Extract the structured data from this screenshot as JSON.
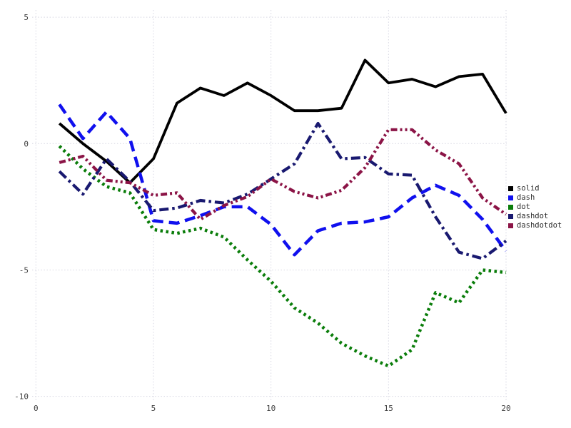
{
  "chart_data": {
    "type": "line",
    "title": "",
    "xlabel": "",
    "ylabel": "",
    "x": [
      1,
      2,
      3,
      4,
      5,
      6,
      7,
      8,
      9,
      10,
      11,
      12,
      13,
      14,
      15,
      16,
      17,
      18,
      19,
      20
    ],
    "series": [
      {
        "name": "solid",
        "style": "solid",
        "color": "#000000",
        "values": [
          0.8,
          0.0,
          -0.7,
          -1.55,
          -0.6,
          1.6,
          2.2,
          1.9,
          2.4,
          1.9,
          1.3,
          1.3,
          1.4,
          3.3,
          2.4,
          2.55,
          2.25,
          2.65,
          2.75,
          1.2
        ]
      },
      {
        "name": "dash",
        "style": "dash",
        "color": "#1010ee",
        "values": [
          1.55,
          0.2,
          1.25,
          0.2,
          -3.05,
          -3.15,
          -2.85,
          -2.5,
          -2.5,
          -3.2,
          -4.4,
          -3.45,
          -3.15,
          -3.1,
          -2.9,
          -2.15,
          -1.65,
          -2.05,
          -3.0,
          -4.25
        ]
      },
      {
        "name": "dot",
        "style": "dot",
        "color": "#0a7d0a",
        "values": [
          -0.1,
          -1.0,
          -1.7,
          -1.95,
          -3.4,
          -3.55,
          -3.35,
          -3.7,
          -4.6,
          -5.45,
          -6.5,
          -7.1,
          -7.9,
          -8.4,
          -8.8,
          -8.15,
          -5.9,
          -6.3,
          -5.0,
          -5.1
        ]
      },
      {
        "name": "dashdot",
        "style": "dashdot",
        "color": "#191970",
        "values": [
          -1.1,
          -2.0,
          -0.6,
          -1.5,
          -2.65,
          -2.55,
          -2.25,
          -2.35,
          -2.0,
          -1.4,
          -0.8,
          0.8,
          -0.6,
          -0.55,
          -1.2,
          -1.25,
          -2.9,
          -4.3,
          -4.55,
          -3.85
        ]
      },
      {
        "name": "dashdotdot",
        "style": "dashdotdot",
        "color": "#8b1446",
        "values": [
          -0.75,
          -0.5,
          -1.45,
          -1.55,
          -2.05,
          -1.95,
          -3.0,
          -2.45,
          -2.1,
          -1.4,
          -1.9,
          -2.15,
          -1.85,
          -0.95,
          0.55,
          0.55,
          -0.25,
          -0.8,
          -2.15,
          -2.8
        ]
      }
    ],
    "axes": {
      "x_ticks": [
        0,
        5,
        10,
        15,
        20
      ],
      "y_ticks": [
        5,
        0,
        -5,
        -10
      ],
      "xlim": [
        0,
        20
      ],
      "ylim": [
        -10,
        5
      ],
      "grid": true,
      "grid_style": "dotted"
    },
    "legend": {
      "position": "right",
      "labels": [
        "solid",
        "dash",
        "dot",
        "dashdot",
        "dashdotdot"
      ]
    }
  }
}
